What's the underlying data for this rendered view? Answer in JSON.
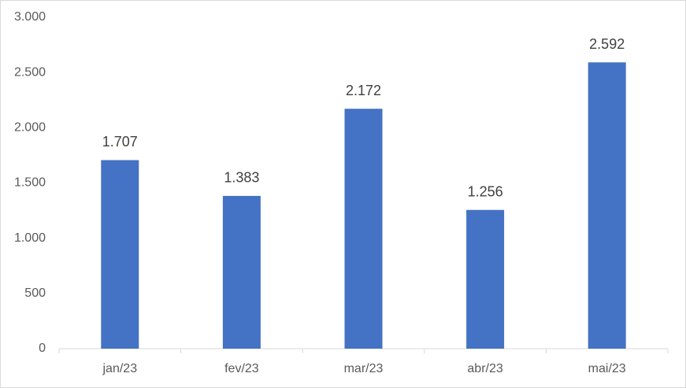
{
  "chart_data": {
    "type": "bar",
    "categories": [
      "jan/23",
      "fev/23",
      "mar/23",
      "abr/23",
      "mai/23"
    ],
    "values": [
      1707,
      1383,
      2172,
      1256,
      2592
    ],
    "value_labels": [
      "1.707",
      "1.383",
      "2.172",
      "1.256",
      "2.592"
    ],
    "color": "#4472c4",
    "ylim": [
      0,
      3000
    ],
    "yticks": [
      0,
      500,
      {
        "value": 1000,
        "label": "1.000"
      },
      {
        "value": 1500,
        "label": "1.500"
      },
      {
        "value": 2000,
        "label": "2.000"
      },
      {
        "value": 2500,
        "label": "2.500"
      },
      {
        "value": 3000,
        "label": "3.000"
      }
    ],
    "grid": false
  }
}
